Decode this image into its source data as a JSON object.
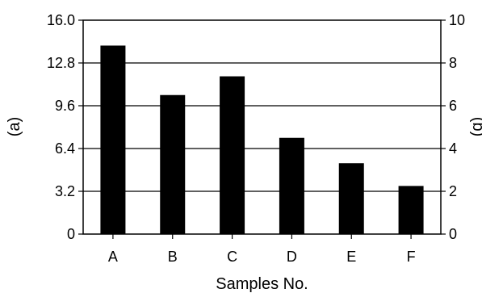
{
  "chart_data": {
    "type": "bar",
    "categories": [
      "A",
      "B",
      "C",
      "D",
      "E",
      "F"
    ],
    "values": [
      14.1,
      10.4,
      11.8,
      7.2,
      5.3,
      3.6
    ],
    "xlabel": "Samples No.",
    "ylabel": "(a)",
    "y2label": "(b)",
    "ylim": [
      0,
      16
    ],
    "yticks": [
      "0",
      "3.2",
      "6.4",
      "9.6",
      "12.8",
      "16.0"
    ],
    "y2lim": [
      0,
      10
    ],
    "y2ticks": [
      "0",
      "2",
      "4",
      "6",
      "8",
      "10"
    ],
    "grid": "horizontal",
    "bar_color": "#000000"
  }
}
